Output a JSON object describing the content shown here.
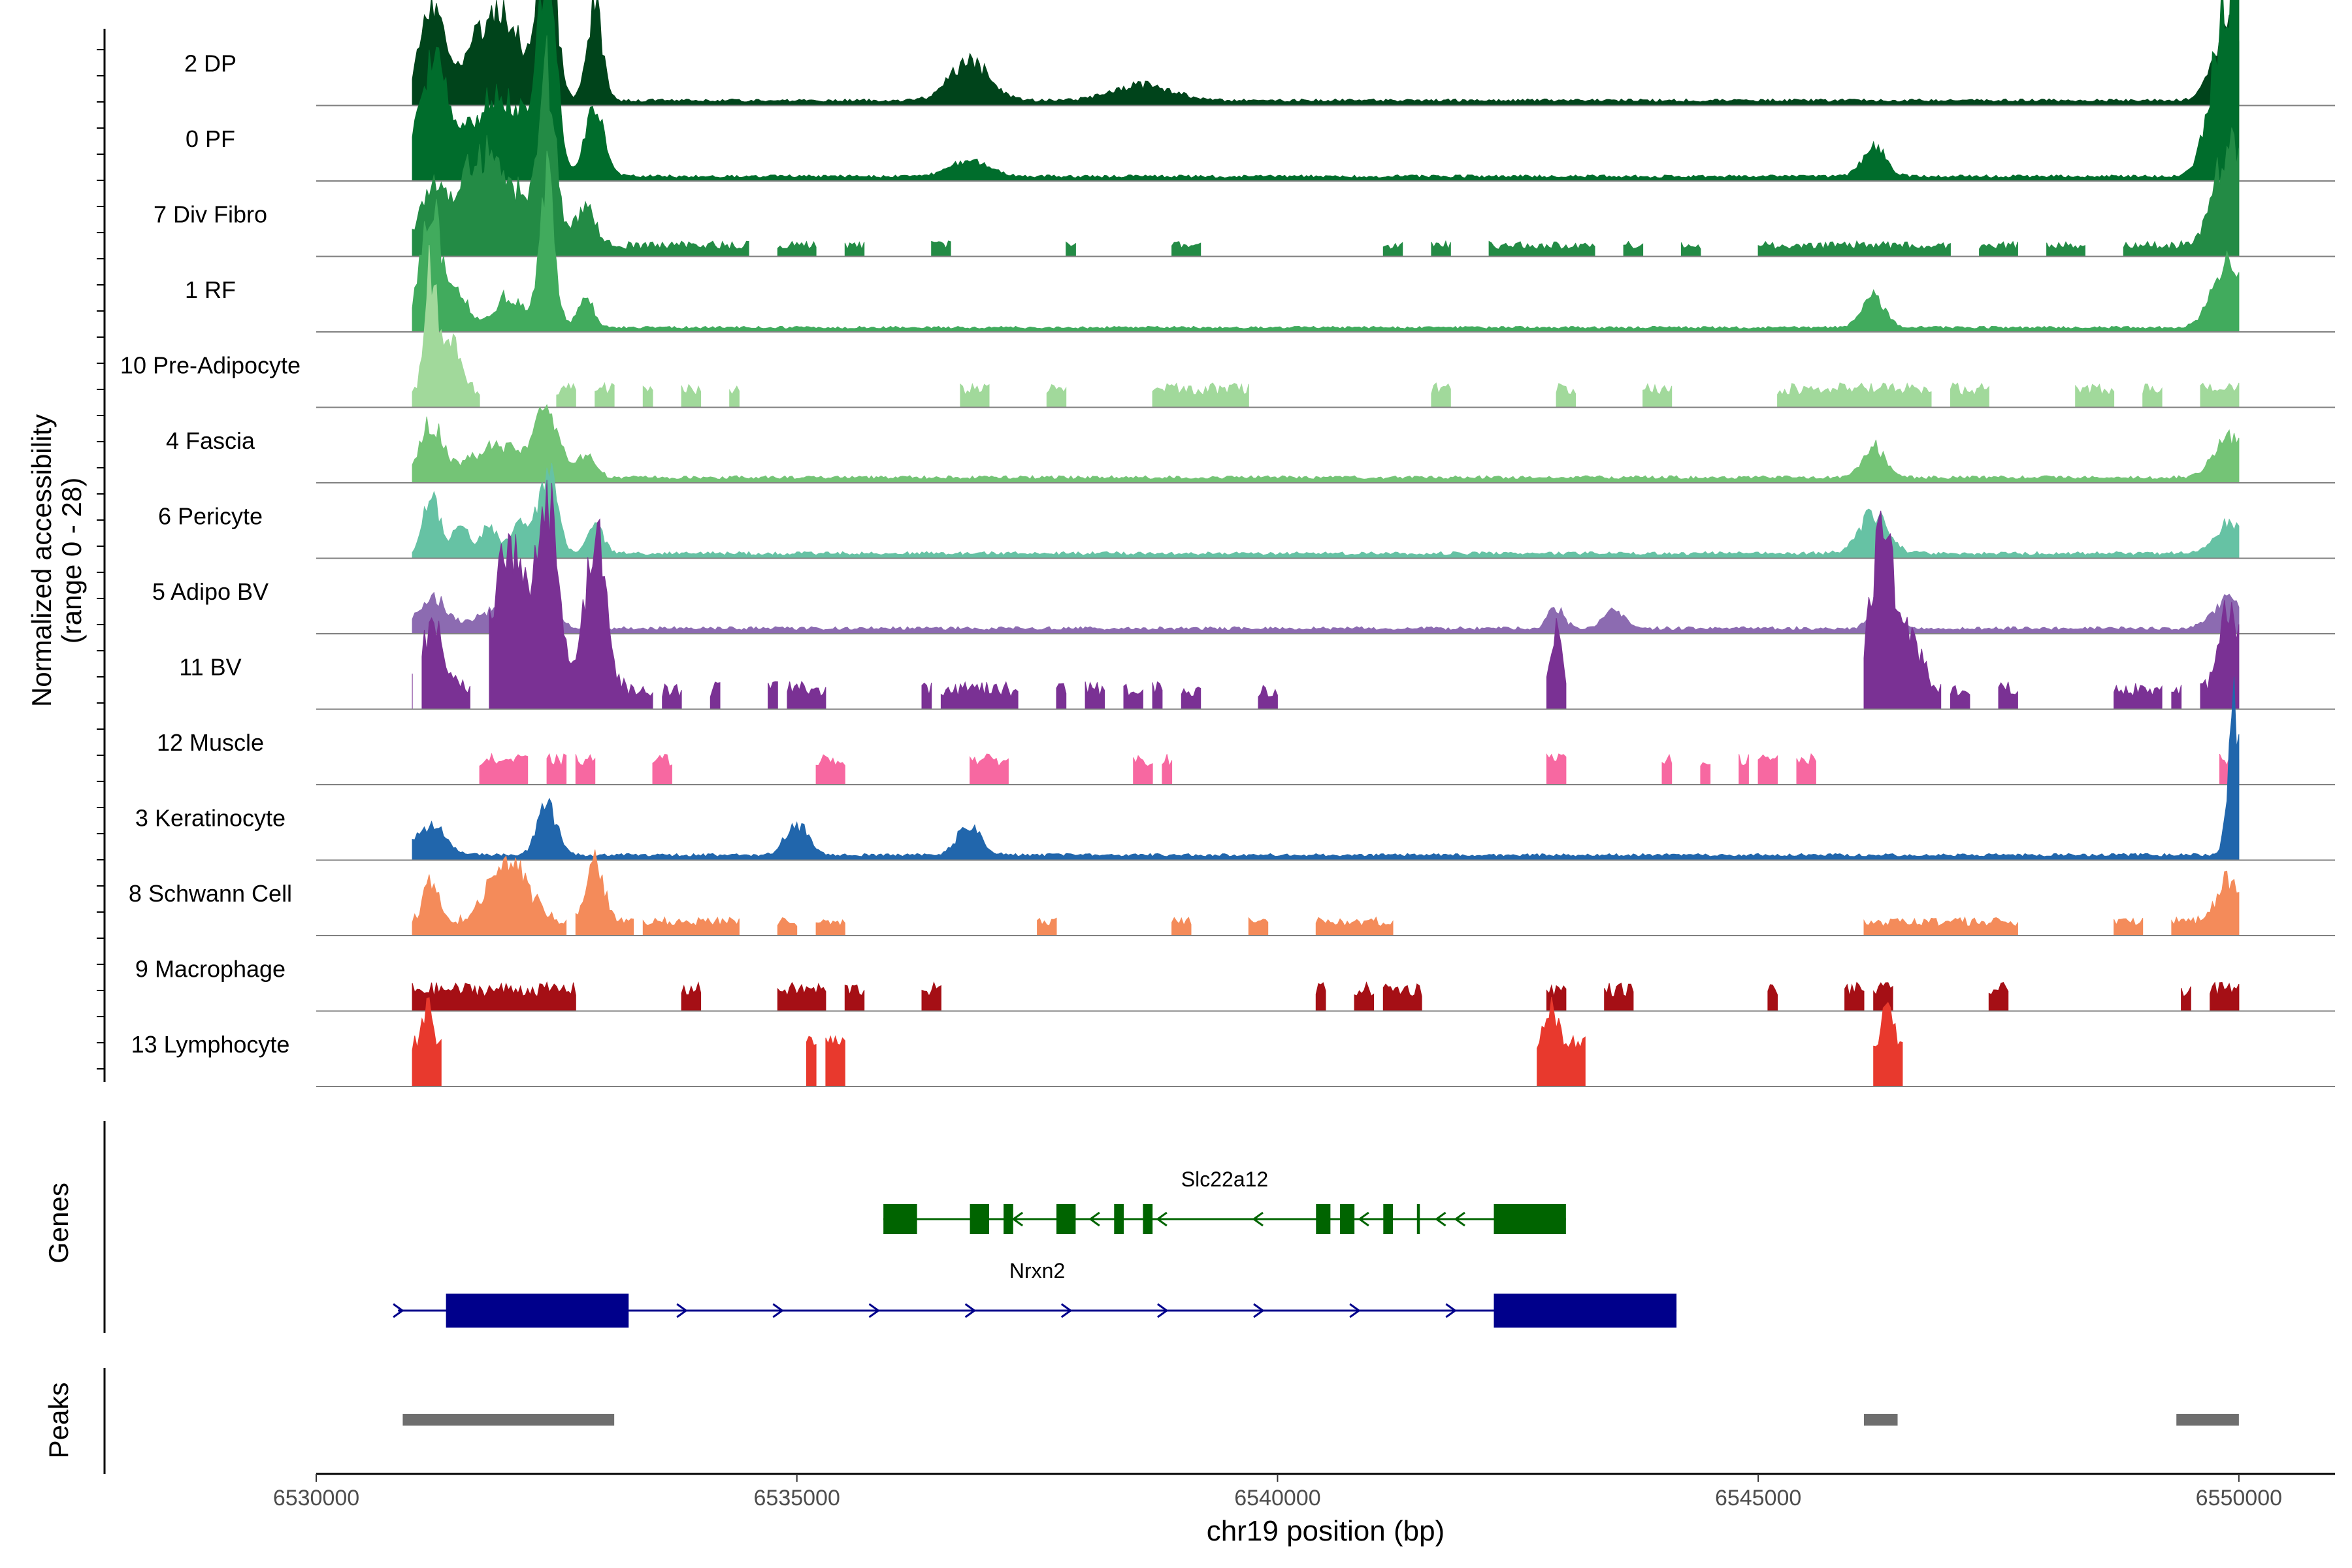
{
  "chart_data": {
    "type": "area",
    "title": "",
    "xlabel": "chr19 position (bp)",
    "ylabel_line1": "Normalized accessibility",
    "ylabel_line2": "(range 0 - 28)",
    "y_range": [
      0,
      28
    ],
    "xlim": [
      6530000,
      6551000
    ],
    "x_ticks": [
      6530000,
      6535000,
      6540000,
      6545000,
      6550000
    ],
    "x_tick_labels": [
      "6530000",
      "6535000",
      "6540000",
      "6545000",
      "6550000"
    ],
    "tracks": [
      {
        "name": "2 DP",
        "color": "#00441B",
        "sparse": false,
        "base": 0.35,
        "noise": 0.3,
        "peaks": [
          [
            6531200,
            9,
            120
          ],
          [
            6531700,
            5,
            200
          ],
          [
            6532000,
            6,
            200
          ],
          [
            6532400,
            17,
            90
          ],
          [
            6532900,
            9,
            80
          ],
          [
            6536800,
            4,
            200
          ],
          [
            6538600,
            1.5,
            300
          ],
          [
            6549900,
            8,
            150
          ]
        ]
      },
      {
        "name": "0 PF",
        "color": "#006D2C",
        "sparse": false,
        "base": 0.3,
        "noise": 0.3,
        "peaks": [
          [
            6531200,
            11,
            150
          ],
          [
            6531900,
            8,
            300
          ],
          [
            6532400,
            19,
            90
          ],
          [
            6532900,
            6,
            100
          ],
          [
            6536800,
            1.5,
            200
          ],
          [
            6546200,
            3,
            120
          ],
          [
            6549900,
            19,
            160
          ]
        ]
      },
      {
        "name": "7 Div Fibro",
        "color": "#238B45",
        "sparse": true,
        "base": 0.7,
        "noise": 0.8,
        "peaks": [
          [
            6531200,
            4,
            150
          ],
          [
            6531800,
            9,
            300
          ],
          [
            6532400,
            16,
            90
          ],
          [
            6532800,
            4,
            100
          ],
          [
            6549900,
            10,
            150
          ]
        ],
        "segments": [
          [
            6531000,
            6534500
          ],
          [
            6534800,
            6535200
          ],
          [
            6535500,
            6535700
          ],
          [
            6536400,
            6536600
          ],
          [
            6537800,
            6537900
          ],
          [
            6538900,
            6539200
          ],
          [
            6541100,
            6541300
          ],
          [
            6541600,
            6541800
          ],
          [
            6542200,
            6543300
          ],
          [
            6543600,
            6543800
          ],
          [
            6544200,
            6544400
          ],
          [
            6545000,
            6545200
          ],
          [
            6545200,
            6547000
          ],
          [
            6547300,
            6547700
          ],
          [
            6548000,
            6548400
          ],
          [
            6548800,
            6550000
          ]
        ]
      },
      {
        "name": "1 RF",
        "color": "#41AB5D",
        "sparse": false,
        "base": 0.3,
        "noise": 0.25,
        "peaks": [
          [
            6531200,
            11,
            110
          ],
          [
            6531500,
            3,
            100
          ],
          [
            6532000,
            3,
            150
          ],
          [
            6532400,
            14,
            80
          ],
          [
            6532800,
            3,
            80
          ],
          [
            6546200,
            3,
            120
          ],
          [
            6549900,
            7,
            160
          ]
        ]
      },
      {
        "name": "10 Pre-Adipocyte",
        "color": "#A1D99B",
        "sparse": true,
        "base": 1.2,
        "noise": 1.2,
        "peaks": [
          [
            6531200,
            12,
            60
          ],
          [
            6531400,
            5,
            80
          ]
        ],
        "segments": [
          [
            6531000,
            6531700
          ],
          [
            6532500,
            6532700
          ],
          [
            6532900,
            6533100
          ],
          [
            6533400,
            6533500
          ],
          [
            6533800,
            6534000
          ],
          [
            6534300,
            6534400
          ],
          [
            6536700,
            6537000
          ],
          [
            6537600,
            6537800
          ],
          [
            6538700,
            6539700
          ],
          [
            6541600,
            6541800
          ],
          [
            6542900,
            6543100
          ],
          [
            6543800,
            6544100
          ],
          [
            6545200,
            6546800
          ],
          [
            6547000,
            6547400
          ],
          [
            6548300,
            6548700
          ],
          [
            6549000,
            6549200
          ],
          [
            6549600,
            6550000
          ]
        ]
      },
      {
        "name": "4 Fascia",
        "color": "#74C476",
        "sparse": false,
        "base": 0.35,
        "noise": 0.35,
        "peaks": [
          [
            6531200,
            5,
            120
          ],
          [
            6531900,
            3,
            300
          ],
          [
            6532400,
            6,
            120
          ],
          [
            6532800,
            2,
            100
          ],
          [
            6546200,
            3,
            120
          ],
          [
            6549900,
            4,
            160
          ]
        ]
      },
      {
        "name": "6 Pericyte",
        "color": "#66C2A4",
        "sparse": false,
        "base": 0.3,
        "noise": 0.35,
        "peaks": [
          [
            6531200,
            6,
            80
          ],
          [
            6531500,
            3,
            80
          ],
          [
            6531800,
            3,
            80
          ],
          [
            6532100,
            3,
            80
          ],
          [
            6532400,
            8,
            100
          ],
          [
            6532900,
            3,
            80
          ],
          [
            6546200,
            4,
            150
          ],
          [
            6549900,
            3,
            150
          ]
        ]
      },
      {
        "name": "5 Adipo BV",
        "color": "#8C6BB1",
        "sparse": false,
        "base": 0.35,
        "noise": 0.35,
        "peaks": [
          [
            6531200,
            3,
            150
          ],
          [
            6531900,
            2,
            200
          ],
          [
            6532400,
            4,
            100
          ],
          [
            6542900,
            2,
            80
          ],
          [
            6543500,
            2,
            100
          ],
          [
            6546300,
            4,
            100
          ],
          [
            6549900,
            3,
            150
          ]
        ]
      },
      {
        "name": "11 BV",
        "color": "#7A3194",
        "sparse": true,
        "base": 1.2,
        "noise": 1.5,
        "peaks": [
          [
            6531200,
            6,
            120
          ],
          [
            6532000,
            14,
            150
          ],
          [
            6532400,
            18,
            120
          ],
          [
            6532900,
            15,
            110
          ],
          [
            6542900,
            6,
            60
          ],
          [
            6546300,
            16,
            120
          ],
          [
            6546600,
            5,
            100
          ],
          [
            6549900,
            8,
            100
          ]
        ],
        "segments": [
          [
            6530900,
            6531000
          ],
          [
            6531100,
            6531600
          ],
          [
            6531800,
            6533500
          ],
          [
            6533600,
            6533800
          ],
          [
            6534100,
            6534200
          ],
          [
            6534700,
            6534800
          ],
          [
            6534900,
            6535300
          ],
          [
            6536300,
            6536400
          ],
          [
            6536500,
            6537300
          ],
          [
            6537700,
            6537800
          ],
          [
            6538000,
            6538200
          ],
          [
            6538400,
            6538600
          ],
          [
            6538700,
            6538800
          ],
          [
            6539000,
            6539200
          ],
          [
            6539800,
            6540000
          ],
          [
            6542800,
            6543000
          ],
          [
            6546100,
            6546900
          ],
          [
            6547000,
            6547200
          ],
          [
            6547500,
            6547700
          ],
          [
            6548700,
            6548900
          ],
          [
            6548900,
            6549200
          ],
          [
            6549300,
            6549400
          ],
          [
            6549600,
            6550000
          ]
        ]
      },
      {
        "name": "12 Muscle",
        "color": "#F768A1",
        "sparse": true,
        "base": 1.8,
        "noise": 1.2,
        "peaks": [],
        "segments": [
          [
            6531700,
            6531900
          ],
          [
            6531900,
            6532200
          ],
          [
            6532400,
            6532600
          ],
          [
            6532700,
            6532900
          ],
          [
            6533500,
            6533700
          ],
          [
            6535200,
            6535500
          ],
          [
            6536800,
            6537200
          ],
          [
            6538500,
            6538700
          ],
          [
            6538800,
            6538900
          ],
          [
            6542800,
            6543000
          ],
          [
            6544000,
            6544100
          ],
          [
            6544400,
            6544500
          ],
          [
            6544800,
            6544900
          ],
          [
            6545000,
            6545200
          ],
          [
            6545400,
            6545600
          ],
          [
            6549800,
            6550000
          ]
        ]
      },
      {
        "name": "3 Keratinocyte",
        "color": "#2166AC",
        "sparse": false,
        "base": 0.35,
        "noise": 0.3,
        "peaks": [
          [
            6531200,
            3,
            150
          ],
          [
            6532400,
            5,
            100
          ],
          [
            6535000,
            3,
            120
          ],
          [
            6536800,
            3,
            120
          ],
          [
            6549950,
            14,
            60
          ]
        ]
      },
      {
        "name": "8 Schwann Cell",
        "color": "#F48B5A",
        "sparse": true,
        "base": 0.9,
        "noise": 0.9,
        "peaks": [
          [
            6531200,
            4,
            80
          ],
          [
            6532000,
            6,
            200
          ],
          [
            6532900,
            6,
            90
          ],
          [
            6549900,
            4,
            120
          ]
        ],
        "segments": [
          [
            6531000,
            6532600
          ],
          [
            6532700,
            6533300
          ],
          [
            6533400,
            6534400
          ],
          [
            6534800,
            6535000
          ],
          [
            6535200,
            6535500
          ],
          [
            6537500,
            6537700
          ],
          [
            6538900,
            6539100
          ],
          [
            6539700,
            6539900
          ],
          [
            6540400,
            6541200
          ],
          [
            6546100,
            6547700
          ],
          [
            6548700,
            6549000
          ],
          [
            6549300,
            6550000
          ]
        ]
      },
      {
        "name": "9 Macrophage",
        "color": "#A50F15",
        "sparse": true,
        "base": 1.4,
        "noise": 1.4,
        "peaks": [],
        "segments": [
          [
            6531000,
            6531300
          ],
          [
            6531300,
            6531800
          ],
          [
            6531800,
            6532700
          ],
          [
            6533800,
            6534000
          ],
          [
            6534800,
            6535000
          ],
          [
            6535000,
            6535300
          ],
          [
            6535500,
            6535700
          ],
          [
            6536300,
            6536500
          ],
          [
            6540400,
            6540500
          ],
          [
            6540800,
            6541000
          ],
          [
            6541100,
            6541500
          ],
          [
            6542800,
            6543000
          ],
          [
            6543400,
            6543700
          ],
          [
            6545100,
            6545200
          ],
          [
            6545900,
            6546100
          ],
          [
            6546200,
            6546400
          ],
          [
            6547400,
            6547600
          ],
          [
            6549400,
            6549500
          ],
          [
            6549700,
            6550000
          ]
        ]
      },
      {
        "name": "13 Lymphocyte",
        "color": "#E8392D",
        "sparse": true,
        "base": 3.5,
        "noise": 1.5,
        "peaks": [
          [
            6531150,
            4,
            40
          ],
          [
            6542850,
            4,
            60
          ],
          [
            6546350,
            4,
            50
          ]
        ],
        "segments": [
          [
            6531000,
            6531300
          ],
          [
            6535100,
            6535200
          ],
          [
            6535300,
            6535500
          ],
          [
            6542700,
            6543000
          ],
          [
            6543000,
            6543200
          ],
          [
            6546200,
            6546500
          ]
        ]
      }
    ],
    "genes_label": "Genes",
    "genes": [
      {
        "name": "Slc22a12",
        "strand": "-",
        "color": "#006400",
        "start": 6535900,
        "end": 6543000,
        "exons": [
          [
            6535900,
            6536250
          ],
          [
            6536800,
            6537000
          ],
          [
            6537150,
            6537250
          ],
          [
            6537700,
            6537900
          ],
          [
            6538300,
            6538400
          ],
          [
            6538600,
            6538700
          ],
          [
            6540400,
            6540550
          ],
          [
            6540650,
            6540800
          ],
          [
            6541100,
            6541200
          ],
          [
            6541450,
            6541480
          ],
          [
            6542250,
            6543000
          ]
        ],
        "arrows": [
          6537300,
          6538100,
          6538800,
          6539800,
          6540900,
          6541700,
          6541900
        ]
      },
      {
        "name": "Nrxn2",
        "strand": "+",
        "color": "#00008B",
        "start": 6530850,
        "end": 6544150,
        "exons": [
          [
            6531350,
            6533250
          ],
          [
            6542250,
            6544150
          ]
        ],
        "arrows": [
          6530850,
          6533800,
          6534800,
          6535800,
          6536800,
          6537800,
          6538800,
          6539800,
          6540800,
          6541800
        ]
      }
    ],
    "peaks_label": "Peaks",
    "peak_regions": [
      [
        6530900,
        6533100
      ],
      [
        6546100,
        6546450
      ],
      [
        6549350,
        6550000
      ]
    ]
  }
}
